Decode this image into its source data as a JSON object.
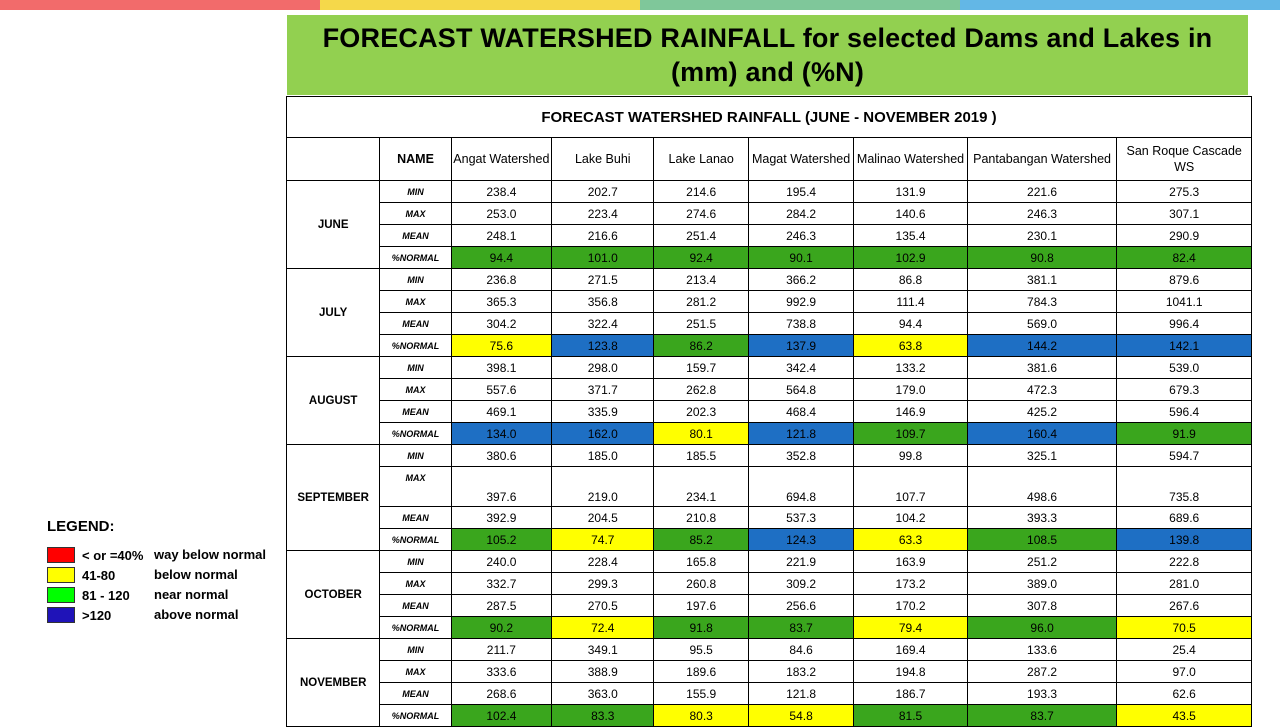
{
  "topbar_colors": [
    "#f26b6b",
    "#f5d84a",
    "#7fc79a",
    "#63b7e6"
  ],
  "title": "FORECAST WATERSHED RAINFALL  for selected Dams and Lakes in (mm) and (%N)",
  "table": {
    "caption": "FORECAST WATERSHED RAINFALL (JUNE - NOVEMBER 2019 )",
    "name_label": "NAME",
    "watersheds": [
      "Angat Watershed",
      "Lake Buhi",
      "Lake Lanao",
      "Magat Watershed",
      "Malinao Watershed",
      "Pantabangan Watershed",
      "San Roque Cascade WS"
    ],
    "stat_labels": [
      "MIN",
      "MAX",
      "MEAN",
      "%NORMAL"
    ],
    "months": [
      {
        "name": "JUNE",
        "rows": [
          [
            "238.4",
            "202.7",
            "214.6",
            "195.4",
            "131.9",
            "221.6",
            "275.3"
          ],
          [
            "253.0",
            "223.4",
            "274.6",
            "284.2",
            "140.6",
            "246.3",
            "307.1"
          ],
          [
            "248.1",
            "216.6",
            "251.4",
            "246.3",
            "135.4",
            "230.1",
            "290.9"
          ],
          [
            "94.4",
            "101.0",
            "92.4",
            "90.1",
            "102.9",
            "90.8",
            "82.4"
          ]
        ],
        "normal_colors": [
          "#3aa61d",
          "#3aa61d",
          "#3aa61d",
          "#3aa61d",
          "#3aa61d",
          "#3aa61d",
          "#3aa61d"
        ]
      },
      {
        "name": "JULY",
        "rows": [
          [
            "236.8",
            "271.5",
            "213.4",
            "366.2",
            "86.8",
            "381.1",
            "879.6"
          ],
          [
            "365.3",
            "356.8",
            "281.2",
            "992.9",
            "111.4",
            "784.3",
            "1041.1"
          ],
          [
            "304.2",
            "322.4",
            "251.5",
            "738.8",
            "94.4",
            "569.0",
            "996.4"
          ],
          [
            "75.6",
            "123.8",
            "86.2",
            "137.9",
            "63.8",
            "144.2",
            "142.1"
          ]
        ],
        "normal_colors": [
          "#ffff00",
          "#1e6fc4",
          "#3aa61d",
          "#1e6fc4",
          "#ffff00",
          "#1e6fc4",
          "#1e6fc4"
        ]
      },
      {
        "name": "AUGUST",
        "rows": [
          [
            "398.1",
            "298.0",
            "159.7",
            "342.4",
            "133.2",
            "381.6",
            "539.0"
          ],
          [
            "557.6",
            "371.7",
            "262.8",
            "564.8",
            "179.0",
            "472.3",
            "679.3"
          ],
          [
            "469.1",
            "335.9",
            "202.3",
            "468.4",
            "146.9",
            "425.2",
            "596.4"
          ],
          [
            "134.0",
            "162.0",
            "80.1",
            "121.8",
            "109.7",
            "160.4",
            "91.9"
          ]
        ],
        "normal_colors": [
          "#1e6fc4",
          "#1e6fc4",
          "#ffff00",
          "#1e6fc4",
          "#3aa61d",
          "#1e6fc4",
          "#3aa61d"
        ]
      },
      {
        "name": "SEPTEMBER",
        "rows": [
          [
            "380.6",
            "185.0",
            "185.5",
            "352.8",
            "99.8",
            "325.1",
            "594.7"
          ],
          [
            "397.6",
            "219.0",
            "234.1",
            "694.8",
            "107.7",
            "498.6",
            "735.8"
          ],
          [
            "392.9",
            "204.5",
            "210.8",
            "537.3",
            "104.2",
            "393.3",
            "689.6"
          ],
          [
            "105.2",
            "74.7",
            "85.2",
            "124.3",
            "63.3",
            "108.5",
            "139.8"
          ]
        ],
        "normal_colors": [
          "#3aa61d",
          "#ffff00",
          "#3aa61d",
          "#1e6fc4",
          "#ffff00",
          "#3aa61d",
          "#1e6fc4"
        ]
      },
      {
        "name": "OCTOBER",
        "rows": [
          [
            "240.0",
            "228.4",
            "165.8",
            "221.9",
            "163.9",
            "251.2",
            "222.8"
          ],
          [
            "332.7",
            "299.3",
            "260.8",
            "309.2",
            "173.2",
            "389.0",
            "281.0"
          ],
          [
            "287.5",
            "270.5",
            "197.6",
            "256.6",
            "170.2",
            "307.8",
            "267.6"
          ],
          [
            "90.2",
            "72.4",
            "91.8",
            "83.7",
            "79.4",
            "96.0",
            "70.5"
          ]
        ],
        "normal_colors": [
          "#3aa61d",
          "#ffff00",
          "#3aa61d",
          "#3aa61d",
          "#ffff00",
          "#3aa61d",
          "#ffff00"
        ]
      },
      {
        "name": "NOVEMBER",
        "rows": [
          [
            "211.7",
            "349.1",
            "95.5",
            "84.6",
            "169.4",
            "133.6",
            "25.4"
          ],
          [
            "333.6",
            "388.9",
            "189.6",
            "183.2",
            "194.8",
            "287.2",
            "97.0"
          ],
          [
            "268.6",
            "363.0",
            "155.9",
            "121.8",
            "186.7",
            "193.3",
            "62.6"
          ],
          [
            "102.4",
            "83.3",
            "80.3",
            "54.8",
            "81.5",
            "83.7",
            "43.5"
          ]
        ],
        "normal_colors": [
          "#3aa61d",
          "#3aa61d",
          "#ffff00",
          "#ffff00",
          "#3aa61d",
          "#3aa61d",
          "#ffff00"
        ]
      }
    ]
  },
  "legend": {
    "title": "LEGEND:",
    "items": [
      {
        "range": "< or =40%",
        "desc": "way below normal",
        "color": "#ff0000"
      },
      {
        "range": "41-80",
        "desc": "below normal",
        "color": "#ffff00"
      },
      {
        "range": "81 - 120",
        "desc": "near normal",
        "color": "#00ff00"
      },
      {
        "range": ">120",
        "desc": "above normal",
        "color": "#1f13b8"
      }
    ]
  }
}
